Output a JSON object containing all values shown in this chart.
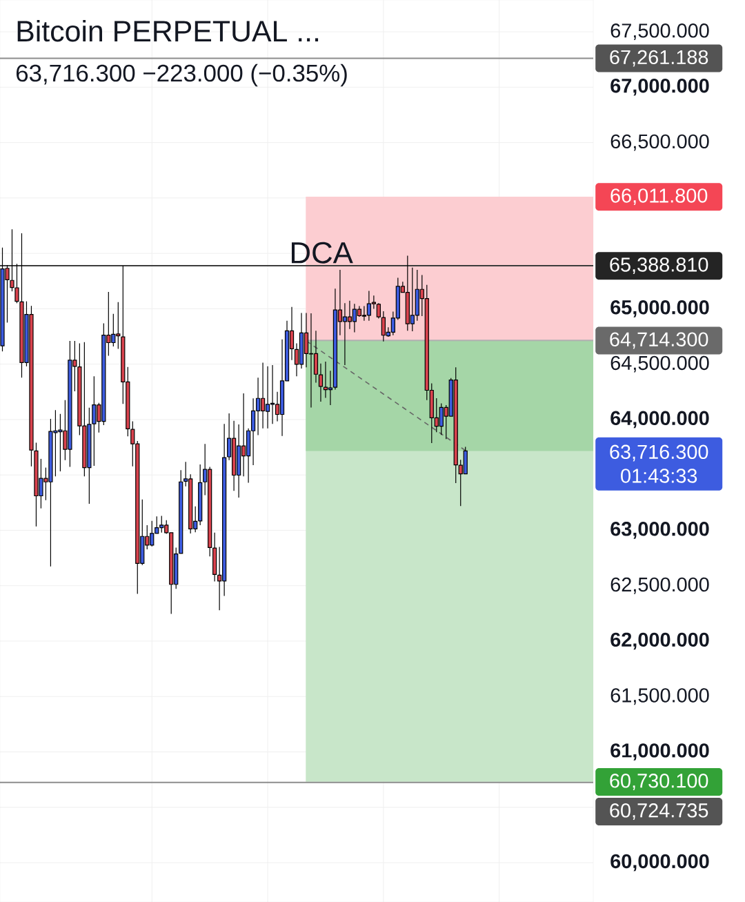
{
  "chart_data": {
    "type": "candlestick",
    "title": "Bitcoin PERPETUAL ...",
    "subtitle": "63,716.300  −223.000 (−0.35%)",
    "categories": [
      null,
      null,
      null,
      null,
      null,
      null,
      null,
      null,
      null,
      null,
      null,
      null,
      null,
      null,
      null,
      null,
      null,
      null,
      null,
      null,
      null,
      null,
      null,
      null,
      null,
      null,
      null,
      null,
      null,
      null,
      null,
      null,
      null,
      null,
      null,
      null,
      null,
      null,
      null,
      null,
      null,
      null,
      null,
      null,
      null,
      null,
      null,
      null,
      null,
      null,
      null,
      null,
      null,
      null,
      null,
      null,
      null,
      null,
      null,
      null,
      null,
      null,
      null,
      null,
      null,
      null,
      null,
      null,
      null,
      null,
      null,
      null,
      null,
      null,
      null,
      null,
      null,
      null,
      null,
      null,
      null,
      null,
      null,
      null,
      null,
      null,
      null,
      null,
      null,
      null,
      null,
      null,
      null,
      null,
      null,
      null,
      null,
      null,
      null,
      null,
      null,
      null,
      null,
      null,
      null,
      null,
      null,
      null,
      null,
      null,
      null,
      null,
      null,
      null,
      null,
      null,
      null,
      null,
      null,
      null,
      null,
      null,
      null
    ],
    "ohlc": [
      [
        64665,
        65552,
        64615,
        65360
      ],
      [
        65365,
        65394,
        64875,
        65261
      ],
      [
        65256,
        65717,
        65157,
        65191
      ],
      [
        65189,
        65405,
        65050,
        65067
      ],
      [
        65062,
        65681,
        64378,
        64514
      ],
      [
        64514,
        65067,
        64480,
        64949
      ],
      [
        64949,
        65026,
        63577,
        63724
      ],
      [
        63717,
        63791,
        63035,
        63311
      ],
      [
        63311,
        63645,
        63198,
        63469
      ],
      [
        63469,
        63566,
        63272,
        63437
      ],
      [
        63437,
        64006,
        62674,
        63893
      ],
      [
        63882,
        64085,
        63487,
        63898
      ],
      [
        63889,
        64051,
        63532,
        63905
      ],
      [
        63898,
        64175,
        63634,
        63731
      ],
      [
        63731,
        64710,
        63573,
        64536
      ],
      [
        64536,
        64710,
        64254,
        64480
      ],
      [
        64475,
        64687,
        63859,
        63943
      ],
      [
        63943,
        64699,
        63487,
        63566
      ],
      [
        63566,
        64107,
        63239,
        63956
      ],
      [
        63961,
        64390,
        63582,
        64132
      ],
      [
        64132,
        64150,
        63882,
        63983
      ],
      [
        63983,
        64868,
        63949,
        64762
      ],
      [
        64762,
        65152,
        64575,
        64694
      ],
      [
        64694,
        64954,
        64660,
        64769
      ],
      [
        64773,
        65060,
        64638,
        64755
      ],
      [
        64746,
        65389,
        64141,
        64340
      ],
      [
        64340,
        64475,
        63848,
        63916
      ],
      [
        63911,
        63983,
        63577,
        63780
      ],
      [
        63780,
        63807,
        62426,
        62701
      ],
      [
        62701,
        63279,
        62686,
        62945
      ],
      [
        62945,
        63047,
        62828,
        62866
      ],
      [
        62866,
        63085,
        62855,
        62972
      ],
      [
        62972,
        63126,
        62972,
        63024
      ],
      [
        63024,
        63130,
        62979,
        63047
      ],
      [
        63047,
        63092,
        62968,
        62979
      ],
      [
        62979,
        62979,
        62245,
        62512
      ],
      [
        62512,
        62844,
        62471,
        62787
      ],
      [
        62792,
        63543,
        62792,
        63437
      ],
      [
        63442,
        63618,
        63396,
        63464
      ],
      [
        63464,
        63505,
        62972,
        63013
      ],
      [
        63013,
        63216,
        62983,
        63081
      ],
      [
        63085,
        63595,
        63047,
        63430
      ],
      [
        63437,
        63780,
        63317,
        63550
      ],
      [
        63550,
        63573,
        62765,
        62844
      ],
      [
        62840,
        62979,
        62539,
        62602
      ],
      [
        62595,
        62850,
        62279,
        62543
      ],
      [
        62543,
        63961,
        62408,
        63656
      ],
      [
        63663,
        64056,
        63634,
        63830
      ],
      [
        63830,
        63988,
        63356,
        63498
      ],
      [
        63498,
        63956,
        63295,
        63762
      ],
      [
        63762,
        64236,
        63487,
        63672
      ],
      [
        63672,
        63920,
        63430,
        63898
      ],
      [
        63898,
        64191,
        63588,
        64078
      ],
      [
        64078,
        64378,
        63859,
        64191
      ],
      [
        64191,
        64514,
        63920,
        64078
      ],
      [
        64073,
        64480,
        63920,
        64137
      ],
      [
        64137,
        64491,
        63961,
        64146
      ],
      [
        64137,
        64250,
        63983,
        64046
      ],
      [
        64046,
        64724,
        63852,
        64349
      ],
      [
        64349,
        64891,
        64349,
        64800
      ],
      [
        64800,
        65017,
        64536,
        64638
      ],
      [
        64633,
        64687,
        64390,
        64498
      ],
      [
        64498,
        64962,
        64461,
        64782
      ],
      [
        64782,
        64962,
        64471,
        64595
      ],
      [
        64595,
        64958,
        64109,
        64591
      ],
      [
        64595,
        64802,
        64333,
        64409
      ],
      [
        64403,
        64506,
        64161,
        64299
      ],
      [
        64291,
        64523,
        64196,
        64270
      ],
      [
        64270,
        64440,
        64130,
        64285
      ],
      [
        64291,
        65181,
        64270,
        64989
      ],
      [
        64989,
        65351,
        64761,
        64885
      ],
      [
        64885,
        65051,
        64492,
        64927
      ],
      [
        64927,
        65072,
        64817,
        64885
      ],
      [
        64885,
        65045,
        64788,
        64995
      ],
      [
        64995,
        65024,
        64927,
        64937
      ],
      [
        64941,
        65024,
        64891,
        64933
      ],
      [
        64941,
        65161,
        64891,
        65045
      ],
      [
        65057,
        65119,
        64999,
        65045
      ],
      [
        65040,
        65051,
        64912,
        64927
      ],
      [
        64920,
        64978,
        64705,
        64761
      ],
      [
        64755,
        64833,
        64747,
        64788
      ],
      [
        64788,
        64974,
        64761,
        64916
      ],
      [
        64916,
        65279,
        64900,
        65202
      ],
      [
        65202,
        65243,
        65148,
        65148
      ],
      [
        65148,
        65479,
        64802,
        64864
      ],
      [
        64864,
        65372,
        64796,
        64941
      ],
      [
        64941,
        65351,
        64891,
        65175
      ],
      [
        65175,
        65305,
        64933,
        65092
      ],
      [
        65092,
        65216,
        64175,
        64264
      ],
      [
        64264,
        64326,
        63788,
        64016
      ],
      [
        64016,
        64192,
        63885,
        63939
      ],
      [
        63939,
        64146,
        63861,
        64109
      ],
      [
        64109,
        64130,
        63823,
        64030
      ],
      [
        64030,
        64374,
        64030,
        64357
      ],
      [
        64357,
        64471,
        63426,
        63591
      ],
      [
        63587,
        63637,
        63219,
        63509
      ],
      [
        63509,
        63753,
        63509,
        63716.3
      ],
      null,
      null,
      null,
      null,
      null,
      null,
      null,
      null,
      null,
      null,
      null,
      null,
      null,
      null,
      null,
      null,
      null,
      null,
      null,
      null,
      null,
      null,
      null,
      null,
      null,
      null
    ],
    "colors": [
      "#3d5ce0",
      "#d9434e",
      "#d9434e",
      "#d9434e",
      "#d9434e",
      "#3d5ce0",
      "#d9434e",
      "#d9434e",
      "#3d5ce0",
      "#d9434e",
      "#3d5ce0",
      "#3d5ce0",
      "#3d5ce0",
      "#d9434e",
      "#3d5ce0",
      "#d9434e",
      "#d9434e",
      "#d9434e",
      "#3d5ce0",
      "#3d5ce0",
      "#d9434e",
      "#3d5ce0",
      "#d9434e",
      "#3d5ce0",
      "#d9434e",
      "#d9434e",
      "#d9434e",
      "#d9434e",
      "#d9434e",
      "#3d5ce0",
      "#d9434e",
      "#3d5ce0",
      "#3d5ce0",
      "#3d5ce0",
      "#d9434e",
      "#d9434e",
      "#3d5ce0",
      "#3d5ce0",
      "#3d5ce0",
      "#d9434e",
      "#3d5ce0",
      "#3d5ce0",
      "#3d5ce0",
      "#d9434e",
      "#d9434e",
      "#d9434e",
      "#3d5ce0",
      "#3d5ce0",
      "#d9434e",
      "#3d5ce0",
      "#d9434e",
      "#3d5ce0",
      "#3d5ce0",
      "#3d5ce0",
      "#d9434e",
      "#3d5ce0",
      "#3d5ce0",
      "#d9434e",
      "#3d5ce0",
      "#3d5ce0",
      "#d9434e",
      "#d9434e",
      "#3d5ce0",
      "#d9434e",
      "#d9434e",
      "#d9434e",
      "#d9434e",
      "#d9434e",
      "#3d5ce0",
      "#3d5ce0",
      "#d9434e",
      "#3d5ce0",
      "#d9434e",
      "#3d5ce0",
      "#d9434e",
      "#d9434e",
      "#3d5ce0",
      "#d9434e",
      "#d9434e",
      "#d9434e",
      "#3d5ce0",
      "#3d5ce0",
      "#3d5ce0",
      "#d9434e",
      "#d9434e",
      "#3d5ce0",
      "#3d5ce0",
      "#d9434e",
      "#d9434e",
      "#d9434e",
      "#d9434e",
      "#3d5ce0",
      "#d9434e",
      "#3d5ce0",
      "#d9434e",
      "#d9434e",
      "#3d5ce0",
      null,
      null,
      null,
      null,
      null,
      null,
      null,
      null,
      null,
      null,
      null,
      null,
      null,
      null,
      null,
      null,
      null,
      null,
      null,
      null,
      null,
      null,
      null,
      null,
      null,
      null
    ],
    "series": [
      {
        "type": "line",
        "color": "#666666",
        "line_style": "dashed",
        "values": [
          null,
          null,
          null,
          null,
          null,
          null,
          null,
          null,
          null,
          null,
          null,
          null,
          null,
          null,
          null,
          null,
          null,
          null,
          null,
          null,
          null,
          null,
          null,
          null,
          null,
          null,
          null,
          null,
          null,
          null,
          null,
          null,
          null,
          null,
          null,
          null,
          null,
          null,
          null,
          null,
          null,
          null,
          null,
          null,
          null,
          null,
          null,
          null,
          null,
          null,
          null,
          null,
          null,
          null,
          null,
          null,
          null,
          null,
          null,
          null,
          null,
          null,
          null,
          64710,
          64680,
          64650,
          64620,
          64590,
          64560,
          64530,
          64500,
          64470,
          64440,
          64410,
          64380,
          64350,
          64320,
          64290,
          64260,
          64230,
          64200,
          64170,
          64140,
          64110,
          64080,
          64050,
          64020,
          63990,
          63960,
          63930,
          63900,
          63870,
          63840,
          63810,
          63780,
          63750,
          63720,
          null,
          null,
          null,
          null,
          null,
          null,
          null,
          null,
          null,
          null,
          null,
          null,
          null,
          null,
          null,
          null,
          null,
          null,
          null,
          null,
          null,
          null,
          null,
          null,
          null,
          null
        ]
      }
    ],
    "ylim": [
      59645,
      67787
    ],
    "yticks": [
      {
        "value": 60000,
        "label": "60,000.000"
      },
      {
        "value": 60500,
        "label": null
      },
      {
        "value": 61000,
        "label": "61,000.000"
      },
      {
        "value": 61500,
        "label": "61,500.000"
      },
      {
        "value": 62000,
        "label": "62,000.000"
      },
      {
        "value": 62500,
        "label": "62,500.000"
      },
      {
        "value": 63000,
        "label": "63,000.000"
      },
      {
        "value": 63500,
        "label": null
      },
      {
        "value": 64000,
        "label": "64,000.000"
      },
      {
        "value": 64500,
        "label": "64,500.000"
      },
      {
        "value": 65000,
        "label": "65,000.000"
      },
      {
        "value": 65500,
        "label": null
      },
      {
        "value": 66000,
        "label": null
      },
      {
        "value": 66500,
        "label": "66,500.000"
      },
      {
        "value": 67000,
        "label": "67,000.000"
      },
      {
        "value": 67500,
        "label": "67,500.000"
      }
    ],
    "tick_labels": "y",
    "grid": true,
    "ref_lines": [
      {
        "axis": "y",
        "value": 67261.188,
        "label": "67,261.188",
        "color": "#8c8c8c"
      },
      {
        "axis": "y",
        "value": 65388.81,
        "label": "65,388.810",
        "color": "#3c3c3c"
      },
      {
        "axis": "y",
        "value": 64714.3,
        "label": "64,714.300",
        "color": "#b0b0b0"
      },
      {
        "axis": "y",
        "value": 60724.735,
        "label": "60,724.735",
        "color": "#8c8c8c"
      }
    ],
    "bands": [
      {
        "axis": "y",
        "from": 66011.8,
        "to": 64714.3,
        "label": "66,011.800",
        "color": "#fccdd1"
      },
      {
        "axis": "y",
        "from": 60730.1,
        "to": 64714.3,
        "label": "60,730.100",
        "color": "#c8e6c9"
      },
      {
        "axis": "y",
        "from": 64714.3,
        "to": 63716.3,
        "color": "#a5d6a7"
      }
    ],
    "annotations": [
      {
        "text": "DCA",
        "y": 65388.81
      },
      "63,716.300",
      "01:43:33"
    ]
  }
}
